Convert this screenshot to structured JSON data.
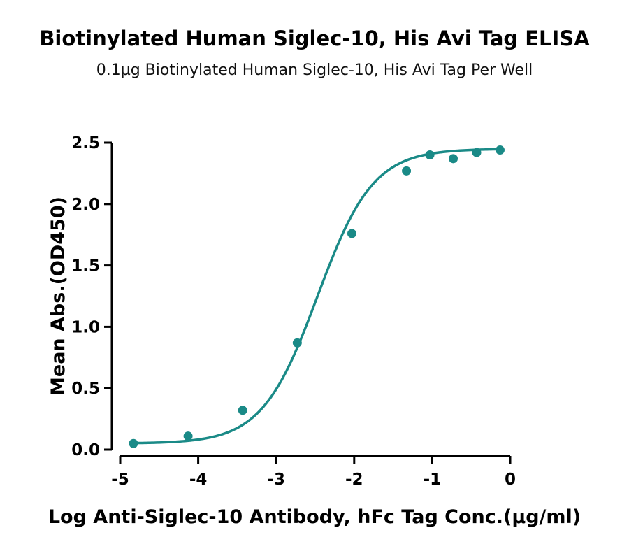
{
  "chart_data": {
    "type": "scatter",
    "title": "Biotinylated Human Siglec-10, His Avi Tag ELISA",
    "subtitle": "0.1µg Biotinylated Human Siglec-10, His Avi Tag Per Well",
    "xlabel": "Log Anti-Siglec-10 Antibody, hFc Tag Conc.(µg/ml)",
    "ylabel": "Mean Abs.(OD450)",
    "xlim": [
      -5,
      0
    ],
    "ylim": [
      0,
      2.5
    ],
    "x_ticks": [
      -5,
      -4,
      -3,
      -2,
      -1,
      0
    ],
    "x_tick_labels": [
      "-5",
      "-4",
      "-3",
      "-2",
      "-1",
      "0"
    ],
    "y_ticks": [
      0,
      0.5,
      1.0,
      1.5,
      2.0,
      2.5
    ],
    "y_tick_labels": [
      "0.0",
      "0.5",
      "1.0",
      "1.5",
      "2.0",
      "2.5"
    ],
    "grid": false,
    "legend": "none",
    "color": "#1a8a87",
    "series": [
      {
        "marker": "circle",
        "x": [
          -4.83,
          -4.13,
          -3.43,
          -2.73,
          -2.03,
          -1.33,
          -1.03,
          -0.73,
          -0.43,
          -0.13
        ],
        "y": [
          0.05,
          0.11,
          0.32,
          0.87,
          1.76,
          2.27,
          2.4,
          2.37,
          2.42,
          2.44
        ]
      }
    ],
    "fit_curve": {
      "model": "4PL",
      "bottom": 0.05,
      "top": 2.45,
      "log_ec50": -2.47,
      "hill_slope": 1.22
    }
  }
}
